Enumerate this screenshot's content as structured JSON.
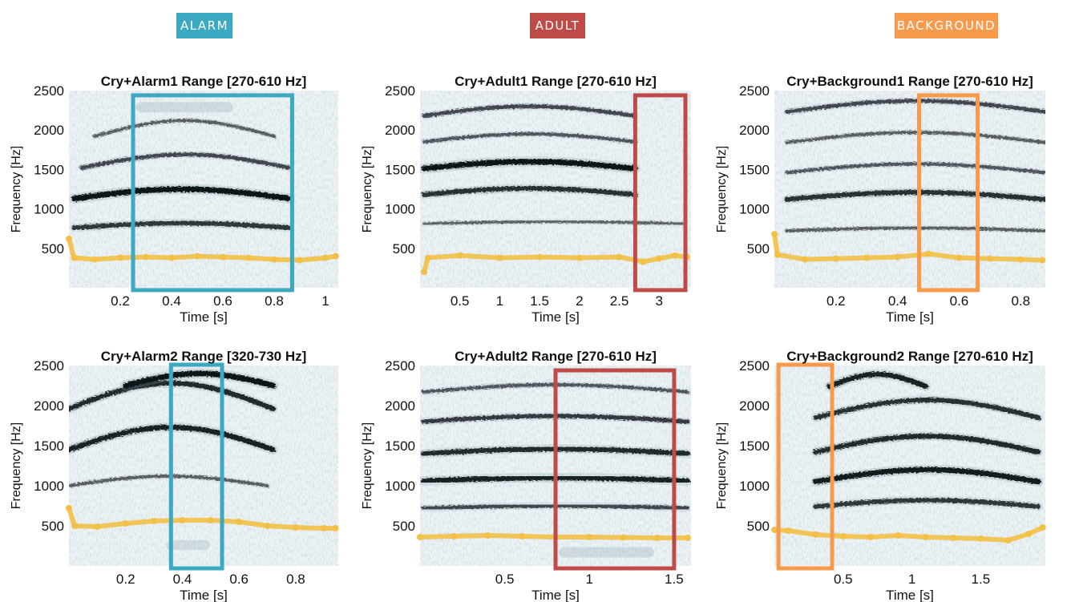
{
  "categories": [
    {
      "label": "ALARM",
      "color": "#3aa9c1"
    },
    {
      "label": "ADULT",
      "color": "#be4b48"
    },
    {
      "label": "BACKGROUND",
      "color": "#f79a4c"
    }
  ],
  "pitch_color": "#f2c046",
  "chart_data": [
    {
      "type": "heatmap",
      "title": "Cry+Alarm1 Range [270-610 Hz]",
      "xlabel": "Time [s]",
      "ylabel": "Frequency [Hz]",
      "xlim": [
        0,
        1.05
      ],
      "ylim": [
        0,
        2500
      ],
      "xticks": [
        0.2,
        0.4,
        0.6,
        0.8,
        1
      ],
      "xticklabels": [
        "0.2",
        "0.4",
        "0.6",
        "0.8",
        "1"
      ],
      "yticks": [
        500,
        1000,
        1500,
        2000,
        2500
      ],
      "yticklabels": [
        "500",
        "1000",
        "1500",
        "2000",
        "2500"
      ],
      "highlight": {
        "category": "ALARM",
        "t0": 0.25,
        "t1": 0.87,
        "f0": -30,
        "f1": 2440
      },
      "bands": [
        {
          "t0": 0.02,
          "t1": 0.86,
          "f": 760,
          "curve": 60,
          "strength": 0.75
        },
        {
          "t0": 0.02,
          "t1": 0.86,
          "f": 1130,
          "curve": 120,
          "strength": 1.0
        },
        {
          "t0": 0.05,
          "t1": 0.86,
          "f": 1520,
          "curve": 170,
          "strength": 0.6
        },
        {
          "t0": 0.1,
          "t1": 0.8,
          "f": 1920,
          "curve": 200,
          "strength": 0.45
        },
        {
          "t0": 0.28,
          "t1": 0.62,
          "f": 2290,
          "curve": 0,
          "strength": 1.0
        }
      ],
      "pitch": [
        [
          0,
          620
        ],
        [
          0.02,
          380
        ],
        [
          0.1,
          360
        ],
        [
          0.2,
          380
        ],
        [
          0.3,
          390
        ],
        [
          0.4,
          380
        ],
        [
          0.5,
          400
        ],
        [
          0.6,
          390
        ],
        [
          0.7,
          380
        ],
        [
          0.8,
          360
        ],
        [
          0.9,
          350
        ],
        [
          1.0,
          380
        ],
        [
          1.04,
          400
        ]
      ]
    },
    {
      "type": "heatmap",
      "title": "Cry+Adult1 Range [270-610 Hz]",
      "xlabel": "Time [s]",
      "ylabel": "Frequency [Hz]",
      "xlim": [
        0,
        3.4
      ],
      "ylim": [
        0,
        2500
      ],
      "xticks": [
        0.5,
        1,
        1.5,
        2,
        2.5,
        3
      ],
      "xticklabels": [
        "0.5",
        "1",
        "1.5",
        "2",
        "2.5",
        "3"
      ],
      "yticks": [
        500,
        1000,
        1500,
        2000,
        2500
      ],
      "yticklabels": [
        "500",
        "1000",
        "1500",
        "2000",
        "2500"
      ],
      "highlight": {
        "category": "ADULT",
        "t0": 2.7,
        "t1": 3.33,
        "f0": -30,
        "f1": 2440
      },
      "bands": [
        {
          "t0": 0.05,
          "t1": 3.3,
          "f": 810,
          "curve": 30,
          "strength": 0.4
        },
        {
          "t0": 0.05,
          "t1": 2.7,
          "f": 1180,
          "curve": 80,
          "strength": 0.8
        },
        {
          "t0": 0.05,
          "t1": 2.7,
          "f": 1510,
          "curve": 90,
          "strength": 1.0
        },
        {
          "t0": 0.05,
          "t1": 2.7,
          "f": 1850,
          "curve": 100,
          "strength": 0.5
        },
        {
          "t0": 0.05,
          "t1": 2.7,
          "f": 2180,
          "curve": 120,
          "strength": 0.6
        }
      ],
      "pitch": [
        [
          0.05,
          200
        ],
        [
          0.1,
          380
        ],
        [
          0.5,
          410
        ],
        [
          1,
          380
        ],
        [
          1.5,
          390
        ],
        [
          2,
          380
        ],
        [
          2.5,
          390
        ],
        [
          2.8,
          330
        ],
        [
          3.0,
          370
        ],
        [
          3.2,
          410
        ],
        [
          3.35,
          390
        ]
      ]
    },
    {
      "type": "heatmap",
      "title": "Cry+Background1 Range [270-610 Hz]",
      "xlabel": "Time [s]",
      "ylabel": "Frequency [Hz]",
      "xlim": [
        0,
        0.88
      ],
      "ylim": [
        0,
        2500
      ],
      "xticks": [
        0.2,
        0.4,
        0.6,
        0.8
      ],
      "xticklabels": [
        "0.2",
        "0.4",
        "0.6",
        "0.8"
      ],
      "yticks": [
        500,
        1000,
        1500,
        2000,
        2500
      ],
      "yticklabels": [
        "500",
        "1000",
        "1500",
        "2000",
        "2500"
      ],
      "highlight": {
        "category": "BACKGROUND",
        "t0": 0.47,
        "t1": 0.66,
        "f0": -30,
        "f1": 2440
      },
      "bands": [
        {
          "t0": 0.04,
          "t1": 0.88,
          "f": 720,
          "curve": 40,
          "strength": 0.45
        },
        {
          "t0": 0.04,
          "t1": 0.88,
          "f": 1120,
          "curve": 90,
          "strength": 0.8
        },
        {
          "t0": 0.04,
          "t1": 0.88,
          "f": 1460,
          "curve": 110,
          "strength": 0.5
        },
        {
          "t0": 0.04,
          "t1": 0.88,
          "f": 1840,
          "curve": 130,
          "strength": 0.45
        },
        {
          "t0": 0.04,
          "t1": 0.88,
          "f": 2230,
          "curve": 140,
          "strength": 0.6
        }
      ],
      "pitch": [
        [
          0,
          680
        ],
        [
          0.01,
          420
        ],
        [
          0.1,
          360
        ],
        [
          0.2,
          370
        ],
        [
          0.3,
          380
        ],
        [
          0.4,
          390
        ],
        [
          0.5,
          430
        ],
        [
          0.6,
          380
        ],
        [
          0.7,
          370
        ],
        [
          0.8,
          360
        ],
        [
          0.87,
          350
        ]
      ]
    },
    {
      "type": "heatmap",
      "title": "Cry+Alarm2 Range [320-730 Hz]",
      "xlabel": "Time [s]",
      "ylabel": "Frequency [Hz]",
      "xlim": [
        0,
        0.95
      ],
      "ylim": [
        0,
        2500
      ],
      "xticks": [
        0.2,
        0.4,
        0.6,
        0.8
      ],
      "xticklabels": [
        "0.2",
        "0.4",
        "0.6",
        "0.8"
      ],
      "yticks": [
        500,
        1000,
        1500,
        2000,
        2500
      ],
      "yticklabels": [
        "500",
        "1000",
        "1500",
        "2000",
        "2500"
      ],
      "highlight": {
        "category": "ALARM",
        "t0": 0.36,
        "t1": 0.54,
        "f0": -30,
        "f1": 2510
      },
      "bands": [
        {
          "t0": 0.0,
          "t1": 0.7,
          "f": 1000,
          "curve": 120,
          "strength": 0.45
        },
        {
          "t0": 0.0,
          "t1": 0.72,
          "f": 1450,
          "curve": 280,
          "strength": 0.9
        },
        {
          "t0": 0.0,
          "t1": 0.72,
          "f": 1960,
          "curve": 320,
          "strength": 0.85
        },
        {
          "t0": 0.2,
          "t1": 0.72,
          "f": 2250,
          "curve": 150,
          "strength": 1.0
        },
        {
          "t0": 0.36,
          "t1": 0.48,
          "f": 260,
          "curve": 0,
          "strength": 0.9
        }
      ],
      "pitch": [
        [
          0,
          720
        ],
        [
          0.02,
          500
        ],
        [
          0.1,
          490
        ],
        [
          0.2,
          530
        ],
        [
          0.3,
          560
        ],
        [
          0.4,
          570
        ],
        [
          0.5,
          570
        ],
        [
          0.6,
          550
        ],
        [
          0.7,
          500
        ],
        [
          0.8,
          480
        ],
        [
          0.9,
          470
        ],
        [
          0.94,
          470
        ]
      ]
    },
    {
      "type": "heatmap",
      "title": "Cry+Adult2 Range [270-610 Hz]",
      "xlabel": "Time [s]",
      "ylabel": "Frequency [Hz]",
      "xlim": [
        0,
        1.6
      ],
      "ylim": [
        0,
        2500
      ],
      "xticks": [
        0.5,
        1,
        1.5
      ],
      "xticklabels": [
        "0.5",
        "1",
        "1.5"
      ],
      "yticks": [
        500,
        1000,
        1500,
        2000,
        2500
      ],
      "yticklabels": [
        "500",
        "1000",
        "1500",
        "2000",
        "2500"
      ],
      "highlight": {
        "category": "ADULT",
        "t0": 0.8,
        "t1": 1.5,
        "f0": -30,
        "f1": 2440
      },
      "bands": [
        {
          "t0": 0.02,
          "t1": 1.58,
          "f": 720,
          "curve": 30,
          "strength": 0.6
        },
        {
          "t0": 0.02,
          "t1": 1.58,
          "f": 1060,
          "curve": 40,
          "strength": 0.9
        },
        {
          "t0": 0.02,
          "t1": 1.58,
          "f": 1400,
          "curve": 60,
          "strength": 0.85
        },
        {
          "t0": 0.02,
          "t1": 1.58,
          "f": 1800,
          "curve": 70,
          "strength": 0.7
        },
        {
          "t0": 0.02,
          "t1": 1.58,
          "f": 2170,
          "curve": 90,
          "strength": 0.5
        },
        {
          "t0": 0.85,
          "t1": 1.35,
          "f": 170,
          "curve": 0,
          "strength": 1.0
        }
      ],
      "pitch": [
        [
          0,
          360
        ],
        [
          0.2,
          370
        ],
        [
          0.4,
          380
        ],
        [
          0.6,
          370
        ],
        [
          0.8,
          360
        ],
        [
          1.0,
          360
        ],
        [
          1.2,
          355
        ],
        [
          1.4,
          350
        ],
        [
          1.58,
          350
        ]
      ]
    },
    {
      "type": "heatmap",
      "title": "Cry+Background2 Range [270-610 Hz]",
      "xlabel": "Time [s]",
      "ylabel": "Frequency [Hz]",
      "xlim": [
        0,
        1.97
      ],
      "ylim": [
        0,
        2500
      ],
      "xticks": [
        0.5,
        1,
        1.5
      ],
      "xticklabels": [
        "0.5",
        "1",
        "1.5"
      ],
      "yticks": [
        500,
        1000,
        1500,
        2000,
        2500
      ],
      "yticklabels": [
        "500",
        "1000",
        "1500",
        "2000",
        "2500"
      ],
      "highlight": {
        "category": "BACKGROUND",
        "t0": 0.03,
        "t1": 0.42,
        "f0": -30,
        "f1": 2510
      },
      "bands": [
        {
          "t0": 0.3,
          "t1": 1.92,
          "f": 740,
          "curve": 80,
          "strength": 0.75
        },
        {
          "t0": 0.3,
          "t1": 1.92,
          "f": 1050,
          "curve": 150,
          "strength": 0.95
        },
        {
          "t0": 0.3,
          "t1": 1.92,
          "f": 1420,
          "curve": 200,
          "strength": 0.85
        },
        {
          "t0": 0.3,
          "t1": 1.92,
          "f": 1850,
          "curve": 220,
          "strength": 0.8
        },
        {
          "t0": 0.4,
          "t1": 1.1,
          "f": 2240,
          "curve": 150,
          "strength": 0.9
        }
      ],
      "pitch": [
        [
          0,
          450
        ],
        [
          0.1,
          440
        ],
        [
          0.3,
          390
        ],
        [
          0.5,
          370
        ],
        [
          0.7,
          360
        ],
        [
          0.9,
          380
        ],
        [
          1.1,
          360
        ],
        [
          1.3,
          350
        ],
        [
          1.5,
          340
        ],
        [
          1.7,
          320
        ],
        [
          1.85,
          400
        ],
        [
          1.95,
          480
        ]
      ]
    }
  ]
}
